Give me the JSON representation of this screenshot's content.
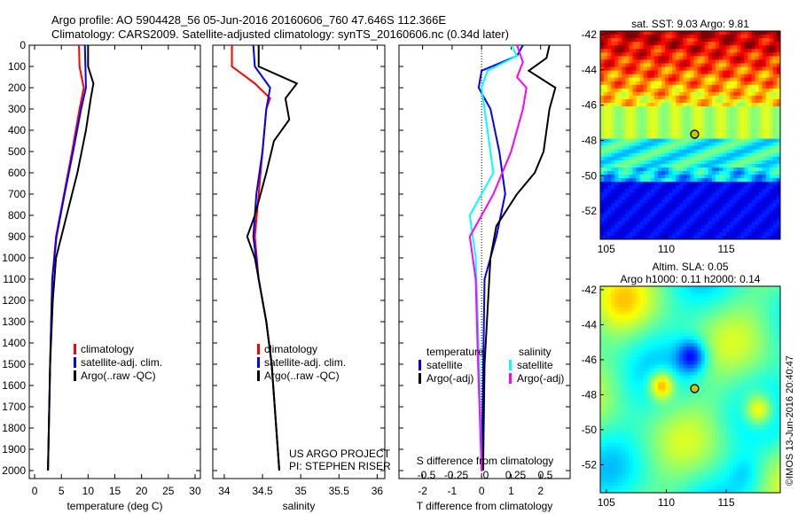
{
  "title": {
    "line1": "Argo profile: AO 5904428_56 05-Jun-2016 20160606_760 47.646S 112.366E",
    "line2": "Climatology: CARS2009. Satellite-adjusted climatology: synTS_20160606.nc (0.34d later)"
  },
  "colors": {
    "climatology": "#ff0000",
    "satellite": "#0000ff",
    "argo": "#000000",
    "s_satellite": "#00ffff",
    "s_argo": "#ff00ff"
  },
  "chart_data": [
    {
      "type": "line",
      "name": "temperature",
      "xlabel": "temperature (deg C)",
      "xlim": [
        -1,
        31
      ],
      "xticks": [
        0,
        5,
        10,
        15,
        20,
        25,
        30
      ],
      "ylim": [
        0,
        2050
      ],
      "yticks": [
        0,
        100,
        200,
        300,
        400,
        500,
        600,
        700,
        800,
        900,
        1000,
        1100,
        1200,
        1300,
        1400,
        1500,
        1600,
        1700,
        1800,
        1900,
        2000
      ],
      "legend": [
        "climatology",
        "satellite-adj. clim.",
        "Argo(..raw -QC)"
      ],
      "series": [
        {
          "name": "climatology",
          "color": "#ff0000",
          "depth": [
            0,
            100,
            200,
            300,
            500,
            700,
            900,
            1100,
            1500,
            2000
          ],
          "values": [
            8.3,
            8.4,
            9.2,
            8.4,
            7.0,
            5.5,
            4.0,
            3.3,
            2.9,
            2.5
          ]
        },
        {
          "name": "satellite-adj. clim.",
          "color": "#0000ff",
          "depth": [
            0,
            100,
            200,
            300,
            500,
            700,
            900,
            1100,
            1500,
            2000
          ],
          "values": [
            9.4,
            9.5,
            9.6,
            8.7,
            7.2,
            5.6,
            4.1,
            3.3,
            2.9,
            2.5
          ]
        },
        {
          "name": "Argo(..raw -QC)",
          "color": "#000000",
          "depth": [
            0,
            100,
            180,
            250,
            400,
            600,
            800,
            900,
            1000,
            1200,
            1500,
            2000
          ],
          "values": [
            10,
            10,
            11,
            10.5,
            9.6,
            8.0,
            6.0,
            5.0,
            4.0,
            3.4,
            2.9,
            2.5
          ]
        }
      ]
    },
    {
      "type": "line",
      "name": "salinity",
      "xlabel": "salinity",
      "xlim": [
        33.85,
        36.1
      ],
      "xticks": [
        34,
        34.5,
        35,
        35.5,
        36
      ],
      "ylim": [
        0,
        2050
      ],
      "legend": [
        "climatology",
        "satellite-adj. clim.",
        "Argo(..raw -QC)"
      ],
      "annotation": [
        "US ARGO PROJECT",
        "PI: STEPHEN RISER"
      ],
      "series": [
        {
          "name": "climatology",
          "color": "#ff0000",
          "depth": [
            0,
            100,
            180,
            250,
            300,
            500,
            700,
            900,
            1100,
            1300,
            1500,
            2000
          ],
          "values": [
            34.1,
            34.1,
            34.4,
            34.6,
            34.55,
            34.5,
            34.45,
            34.4,
            34.45,
            34.55,
            34.62,
            34.72
          ]
        },
        {
          "name": "satellite-adj. clim.",
          "color": "#0000ff",
          "depth": [
            0,
            100,
            200,
            300,
            500,
            700,
            900,
            1100,
            1300,
            1500,
            2000
          ],
          "values": [
            34.38,
            34.4,
            34.6,
            34.55,
            34.5,
            34.42,
            34.38,
            34.45,
            34.55,
            34.62,
            34.72
          ]
        },
        {
          "name": "Argo(..raw -QC)",
          "color": "#000000",
          "depth": [
            0,
            100,
            180,
            250,
            350,
            450,
            600,
            800,
            900,
            1000,
            1300,
            1500,
            2000
          ],
          "values": [
            34.45,
            34.45,
            34.95,
            34.8,
            34.85,
            34.65,
            34.55,
            34.4,
            34.3,
            34.4,
            34.55,
            34.62,
            34.72
          ]
        }
      ]
    },
    {
      "type": "line",
      "name": "difference",
      "xlabel": "T difference from climatology",
      "x2label": "S difference from climatology",
      "xlim": [
        -2.8,
        3.0
      ],
      "xticks": [
        -2,
        -1,
        0,
        1,
        2
      ],
      "x2ticks": [
        "-0.5",
        "-0.25",
        "0",
        "0.25",
        "0.5"
      ],
      "ylim": [
        0,
        2050
      ],
      "legend_titles": [
        "temperature",
        "salinity"
      ],
      "legend": [
        "satellite",
        "Argo(-adj)",
        "satellite",
        "Argo(-adj)"
      ],
      "series": [
        {
          "name": "T satellite",
          "color": "#0000ff",
          "var": "T",
          "depth": [
            0,
            50,
            120,
            200,
            300,
            500,
            700,
            900,
            1100,
            2000
          ],
          "values": [
            1.4,
            1.2,
            0.0,
            -0.1,
            0.3,
            0.6,
            0.8,
            0.5,
            0.1,
            0.0
          ]
        },
        {
          "name": "T Argo(-adj)",
          "color": "#000000",
          "var": "T",
          "depth": [
            0,
            60,
            120,
            200,
            300,
            500,
            600,
            700,
            850,
            1000,
            1500,
            2000
          ],
          "values": [
            2.3,
            2.2,
            1.6,
            2.5,
            2.3,
            2.1,
            1.8,
            1.2,
            0.5,
            0.3,
            0.1,
            0.05
          ]
        },
        {
          "name": "S satellite",
          "color": "#00ffff",
          "var": "S",
          "depth": [
            0,
            50,
            120,
            200,
            400,
            600,
            800,
            1000,
            1500,
            2000
          ],
          "values": [
            0.25,
            0.3,
            0.05,
            0.0,
            0.05,
            0.1,
            -0.1,
            -0.05,
            -0.02,
            0.0
          ]
        },
        {
          "name": "S Argo(-adj)",
          "color": "#ff00ff",
          "var": "S",
          "depth": [
            0,
            80,
            150,
            200,
            300,
            500,
            700,
            900,
            1100,
            1500,
            2000
          ],
          "values": [
            0.3,
            0.35,
            0.3,
            0.38,
            0.35,
            0.25,
            0.1,
            -0.1,
            -0.05,
            -0.03,
            0.0
          ]
        }
      ]
    },
    {
      "type": "heatmap",
      "name": "sst-map",
      "title": "sat. SST: 9.03 Argo: 9.81",
      "xlim": [
        104.5,
        119.5
      ],
      "ylim": [
        -53.6,
        -41.8
      ],
      "xticks": [
        105,
        110,
        115
      ],
      "yticks": [
        -42,
        -44,
        -46,
        -48,
        -50,
        -52
      ],
      "marker": [
        112.366,
        -47.646
      ]
    },
    {
      "type": "heatmap",
      "name": "sla-map",
      "title": [
        "Altim. SLA: 0.05",
        "Argo h1000: 0.11 h2000: 0.14"
      ],
      "xlim": [
        104.5,
        119.5
      ],
      "ylim": [
        -53.6,
        -41.8
      ],
      "xticks": [
        105,
        110,
        115
      ],
      "yticks": [
        -42,
        -44,
        -46,
        -48,
        -50,
        -52
      ],
      "marker": [
        112.366,
        -47.646
      ]
    }
  ],
  "credit": "©IMOS 13-Jun-2016 20:40:47"
}
